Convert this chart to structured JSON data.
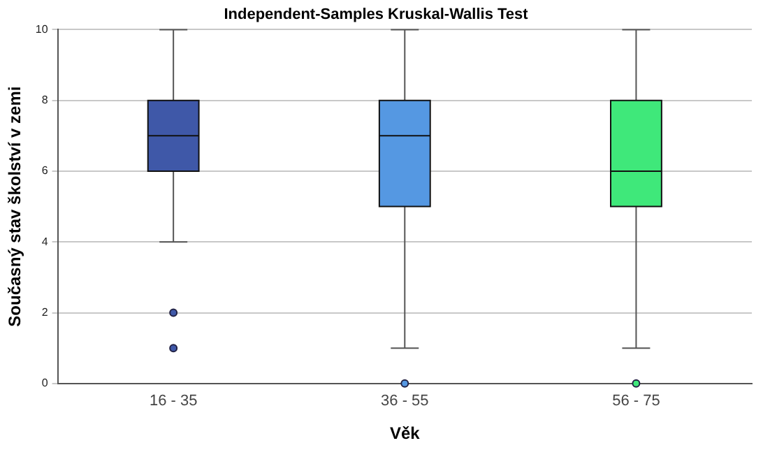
{
  "chart_data": {
    "type": "box",
    "title": "Independent-Samples Kruskal-Wallis Test",
    "xlabel": "Věk",
    "ylabel": "Současný stav školství v zemi",
    "categories": [
      "16 - 35",
      "36 - 55",
      "56 - 75"
    ],
    "boxes": [
      {
        "low": 4,
        "q1": 6,
        "median": 7,
        "q3": 8,
        "high": 10,
        "outliers": [
          2,
          1
        ]
      },
      {
        "low": 1,
        "q1": 5,
        "median": 7,
        "q3": 8,
        "high": 10,
        "outliers": [
          0
        ]
      },
      {
        "low": 1,
        "q1": 5,
        "median": 6,
        "q3": 8,
        "high": 10,
        "outliers": [
          0
        ]
      }
    ],
    "colors": [
      "#3f58a8",
      "#5598e2",
      "#3fe87a"
    ],
    "ylim": [
      0,
      10
    ],
    "yticks": [
      0,
      2,
      4,
      6,
      8,
      10
    ],
    "grid": "y"
  }
}
